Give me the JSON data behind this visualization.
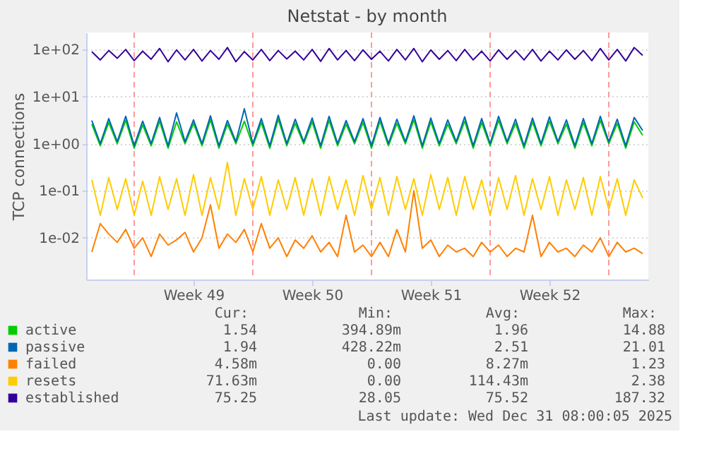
{
  "chart_data": {
    "type": "line",
    "title": "Netstat - by month",
    "ylabel": "TCP connections",
    "x": [
      "2025-11-28T12:00",
      "2025-11-29T00:00",
      "2025-11-29T12:00",
      "2025-11-30T00:00",
      "2025-11-30T12:00",
      "2025-12-01T00:00",
      "2025-12-01T12:00",
      "2025-12-02T00:00",
      "2025-12-02T12:00",
      "2025-12-03T00:00",
      "2025-12-03T12:00",
      "2025-12-04T00:00",
      "2025-12-04T12:00",
      "2025-12-05T00:00",
      "2025-12-05T12:00",
      "2025-12-06T00:00",
      "2025-12-06T12:00",
      "2025-12-07T00:00",
      "2025-12-07T12:00",
      "2025-12-08T00:00",
      "2025-12-08T12:00",
      "2025-12-09T00:00",
      "2025-12-09T12:00",
      "2025-12-10T00:00",
      "2025-12-10T12:00",
      "2025-12-11T00:00",
      "2025-12-11T12:00",
      "2025-12-12T00:00",
      "2025-12-12T12:00",
      "2025-12-13T00:00",
      "2025-12-13T12:00",
      "2025-12-14T00:00",
      "2025-12-14T12:00",
      "2025-12-15T00:00",
      "2025-12-15T12:00",
      "2025-12-16T00:00",
      "2025-12-16T12:00",
      "2025-12-17T00:00",
      "2025-12-17T12:00",
      "2025-12-18T00:00",
      "2025-12-18T12:00",
      "2025-12-19T00:00",
      "2025-12-19T12:00",
      "2025-12-20T00:00",
      "2025-12-20T12:00",
      "2025-12-21T00:00",
      "2025-12-21T12:00",
      "2025-12-22T00:00",
      "2025-12-22T12:00",
      "2025-12-23T00:00",
      "2025-12-23T12:00",
      "2025-12-24T00:00",
      "2025-12-24T12:00",
      "2025-12-25T00:00",
      "2025-12-25T12:00",
      "2025-12-26T00:00",
      "2025-12-26T12:00",
      "2025-12-27T00:00",
      "2025-12-27T12:00",
      "2025-12-28T00:00",
      "2025-12-28T12:00",
      "2025-12-29T00:00",
      "2025-12-29T12:00",
      "2025-12-30T00:00",
      "2025-12-30T12:00",
      "2025-12-31T00:00"
    ],
    "series": [
      {
        "name": "active",
        "color": "#00cc00",
        "values": [
          2.6,
          0.9,
          2.8,
          1.0,
          3.1,
          0.8,
          2.5,
          0.9,
          3.0,
          0.8,
          2.9,
          1.0,
          2.7,
          0.9,
          3.2,
          0.8,
          2.6,
          1.0,
          3.0,
          0.9,
          2.8,
          0.8,
          3.3,
          0.9,
          2.7,
          1.0,
          2.9,
          0.8,
          3.1,
          0.9,
          2.6,
          1.0,
          2.8,
          0.8,
          3.0,
          0.9,
          2.7,
          1.0,
          3.2,
          0.8,
          2.9,
          0.9,
          2.6,
          1.0,
          3.0,
          0.8,
          2.8,
          0.9,
          3.1,
          1.0,
          2.7,
          0.8,
          2.9,
          0.9,
          3.0,
          1.0,
          2.6,
          0.8,
          2.8,
          0.9,
          3.1,
          1.0,
          2.7,
          0.8,
          2.9,
          1.5
        ]
      },
      {
        "name": "passive",
        "color": "#0066b3",
        "values": [
          3.1,
          1.0,
          3.4,
          1.1,
          3.8,
          0.9,
          3.0,
          1.0,
          3.6,
          0.9,
          4.5,
          1.1,
          3.2,
          1.0,
          3.9,
          0.9,
          3.1,
          1.1,
          5.5,
          1.0,
          3.4,
          0.9,
          4.0,
          1.0,
          3.3,
          1.1,
          3.5,
          0.9,
          3.8,
          1.0,
          3.1,
          1.1,
          3.4,
          0.9,
          3.6,
          1.0,
          3.3,
          1.1,
          3.9,
          0.9,
          3.5,
          1.0,
          3.2,
          1.1,
          3.7,
          0.9,
          3.4,
          1.0,
          3.8,
          1.1,
          3.3,
          0.9,
          3.5,
          1.0,
          3.7,
          1.1,
          3.2,
          0.9,
          3.4,
          1.0,
          3.8,
          1.1,
          3.3,
          0.9,
          3.6,
          1.9
        ]
      },
      {
        "name": "failed",
        "color": "#ff8000",
        "values": [
          0.005,
          0.02,
          0.012,
          0.008,
          0.015,
          0.006,
          0.01,
          0.004,
          0.012,
          0.007,
          0.009,
          0.013,
          0.005,
          0.01,
          0.05,
          0.006,
          0.012,
          0.008,
          0.015,
          0.005,
          0.02,
          0.006,
          0.01,
          0.004,
          0.009,
          0.006,
          0.011,
          0.005,
          0.008,
          0.004,
          0.03,
          0.005,
          0.007,
          0.004,
          0.008,
          0.004,
          0.015,
          0.005,
          0.1,
          0.006,
          0.009,
          0.004,
          0.007,
          0.005,
          0.006,
          0.004,
          0.008,
          0.005,
          0.007,
          0.004,
          0.006,
          0.005,
          0.03,
          0.004,
          0.008,
          0.005,
          0.006,
          0.004,
          0.007,
          0.005,
          0.01,
          0.004,
          0.008,
          0.005,
          0.006,
          0.0046
        ]
      },
      {
        "name": "resets",
        "color": "#ffcc00",
        "values": [
          0.17,
          0.03,
          0.19,
          0.04,
          0.18,
          0.03,
          0.16,
          0.03,
          0.2,
          0.04,
          0.18,
          0.03,
          0.22,
          0.03,
          0.19,
          0.04,
          0.4,
          0.03,
          0.18,
          0.04,
          0.2,
          0.03,
          0.17,
          0.04,
          0.19,
          0.03,
          0.18,
          0.03,
          0.2,
          0.04,
          0.17,
          0.03,
          0.21,
          0.04,
          0.19,
          0.03,
          0.2,
          0.04,
          0.18,
          0.03,
          0.22,
          0.04,
          0.19,
          0.03,
          0.2,
          0.04,
          0.17,
          0.03,
          0.19,
          0.04,
          0.21,
          0.03,
          0.18,
          0.04,
          0.2,
          0.03,
          0.17,
          0.04,
          0.19,
          0.03,
          0.2,
          0.04,
          0.18,
          0.03,
          0.17,
          0.07
        ]
      },
      {
        "name": "established",
        "color": "#330099",
        "values": [
          90,
          60,
          95,
          65,
          100,
          58,
          92,
          62,
          105,
          55,
          98,
          60,
          100,
          57,
          95,
          62,
          110,
          55,
          90,
          60,
          100,
          58,
          95,
          63,
          92,
          60,
          100,
          56,
          105,
          60,
          95,
          58,
          98,
          62,
          92,
          57,
          100,
          60,
          105,
          55,
          98,
          62,
          95,
          58,
          100,
          60,
          92,
          57,
          98,
          62,
          95,
          60,
          100,
          57,
          92,
          60,
          98,
          62,
          95,
          58,
          105,
          60,
          100,
          57,
          110,
          75
        ]
      }
    ],
    "log": "y",
    "ylim": [
      0.0013,
      230
    ],
    "yticks": [
      {
        "value": 0.01,
        "label": "1e-02"
      },
      {
        "value": 0.1,
        "label": "1e-01"
      },
      {
        "value": 1,
        "label": "1e+00"
      },
      {
        "value": 10,
        "label": "1e+01"
      },
      {
        "value": 100,
        "label": "1e+02"
      }
    ],
    "xlim": [
      "2025-11-28T04:00",
      "2025-12-31T08:00"
    ],
    "xticks": [
      {
        "value": "2025-12-04T12:00",
        "label": "Week 49"
      },
      {
        "value": "2025-12-11T12:00",
        "label": "Week 50"
      },
      {
        "value": "2025-12-18T12:00",
        "label": "Week 51"
      },
      {
        "value": "2025-12-25T12:00",
        "label": "Week 52"
      }
    ],
    "ref_lines": [
      {
        "axis": "x",
        "value": "2025-12-01T00:00",
        "color": "#ff9999",
        "line_style": "dashed"
      },
      {
        "axis": "x",
        "value": "2025-12-08T00:00",
        "color": "#ff9999",
        "line_style": "dashed"
      },
      {
        "axis": "x",
        "value": "2025-12-15T00:00",
        "color": "#ff9999",
        "line_style": "dashed"
      },
      {
        "axis": "x",
        "value": "2025-12-22T00:00",
        "color": "#ff9999",
        "line_style": "dashed"
      },
      {
        "axis": "x",
        "value": "2025-12-29T00:00",
        "color": "#ff9999",
        "line_style": "dashed"
      }
    ],
    "grid": "y",
    "legend": "bottom",
    "marker": "none",
    "line_style": "solid",
    "annotations": [
      "Cur:",
      "Min:",
      "Avg:",
      "Max:",
      "1.54",
      "394.89m",
      "1.96",
      "14.88",
      "1.94",
      "428.22m",
      "2.51",
      "21.01",
      "4.58m",
      "0.00",
      "8.27m",
      "1.23",
      "71.63m",
      "0.00",
      "114.43m",
      "2.38",
      "75.25",
      "28.05",
      "75.52",
      "187.32",
      "Last update: Wed Dec 31 08:00:05 2025"
    ]
  }
}
